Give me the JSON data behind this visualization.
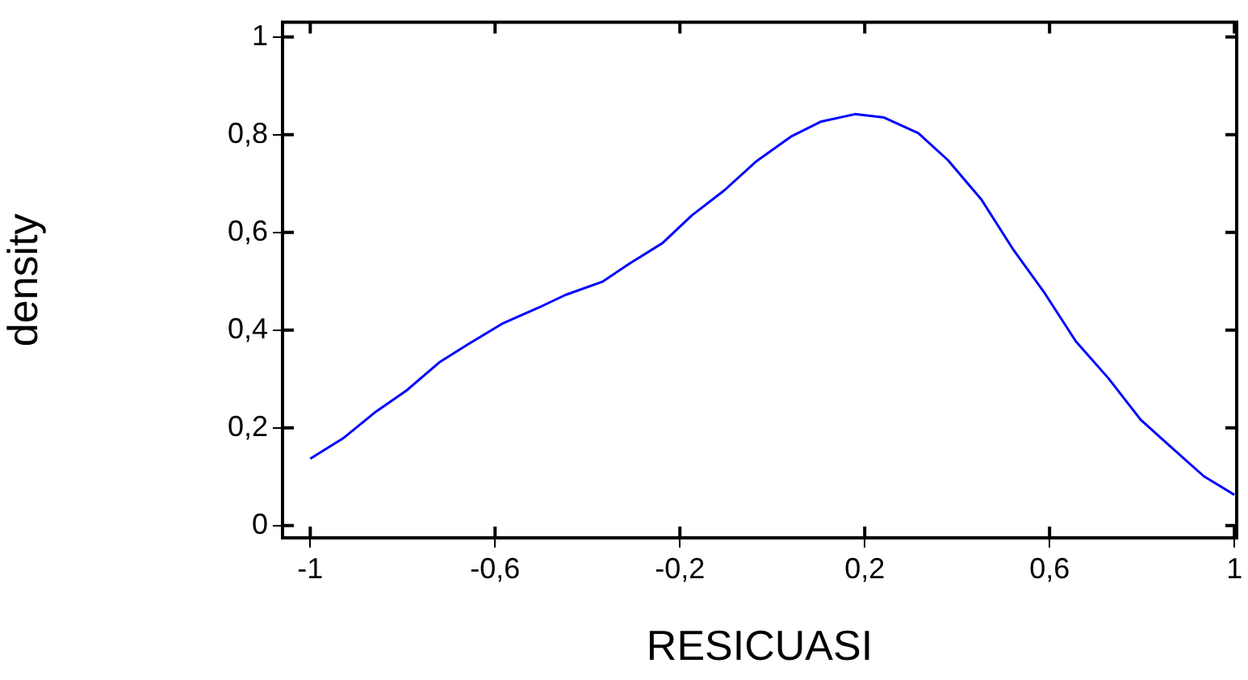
{
  "chart_data": {
    "type": "line",
    "xlabel": "RESICUASI",
    "ylabel": "density",
    "x": [
      -1.0,
      -0.927,
      -0.861,
      -0.791,
      -0.721,
      -0.657,
      -0.585,
      -0.506,
      -0.448,
      -0.368,
      -0.308,
      -0.238,
      -0.174,
      -0.104,
      -0.034,
      0.042,
      0.106,
      0.179,
      0.242,
      0.316,
      0.38,
      0.452,
      0.52,
      0.59,
      0.657,
      0.727,
      0.797,
      0.864,
      0.934,
      1.0
    ],
    "series": [
      {
        "color": "#0000ff",
        "values": [
          0.137,
          0.18,
          0.231,
          0.277,
          0.334,
          0.372,
          0.413,
          0.446,
          0.472,
          0.499,
          0.537,
          0.578,
          0.635,
          0.686,
          0.746,
          0.797,
          0.827,
          0.842,
          0.835,
          0.803,
          0.748,
          0.668,
          0.567,
          0.475,
          0.377,
          0.302,
          0.217,
          0.16,
          0.101,
          0.063
        ]
      }
    ],
    "xlim": [
      -1.06,
      1.005
    ],
    "ylim": [
      -0.025,
      1.03
    ],
    "xticks": [
      -1,
      {
        "value": -0.6,
        "label": "-0,6"
      },
      {
        "value": -0.2,
        "label": "-0,2"
      },
      {
        "value": 0.2,
        "label": "0,2"
      },
      {
        "value": 0.6,
        "label": "0,6"
      },
      1
    ],
    "yticks": [
      0,
      {
        "value": 0.2,
        "label": "0,2"
      },
      {
        "value": 0.4,
        "label": "0,4"
      },
      {
        "value": 0.6,
        "label": "0,6"
      },
      {
        "value": 0.8,
        "label": "0,8"
      },
      1
    ],
    "grid": false,
    "legend": false,
    "marker": "none",
    "line_style": "solid"
  }
}
